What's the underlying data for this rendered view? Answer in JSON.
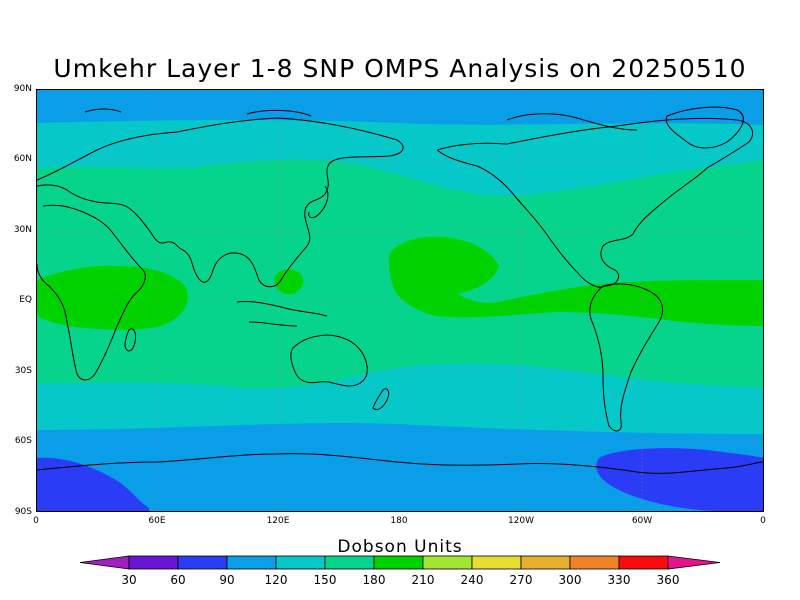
{
  "title": "Umkehr Layer 1-8 SNP OMPS Analysis on 20250510",
  "map": {
    "projection": "cylindrical-equidistant",
    "lat_range": [
      -90,
      90
    ],
    "lon_range": [
      0,
      360
    ],
    "lat_labels": [
      "90N",
      "60N",
      "30N",
      "EQ",
      "30S",
      "60S",
      "90S"
    ],
    "lon_labels": [
      "0",
      "60E",
      "120E",
      "180",
      "120W",
      "60W",
      "0"
    ],
    "gridlines": "dotted"
  },
  "colorbar": {
    "title": "Dobson Units",
    "levels": [
      "30",
      "60",
      "90",
      "120",
      "150",
      "180",
      "210",
      "240",
      "270",
      "300",
      "330",
      "360"
    ],
    "colors": [
      "#a020c0",
      "#6a14d6",
      "#2a3cf5",
      "#0a9ee8",
      "#06c8c8",
      "#06d48c",
      "#00d200",
      "#a0e632",
      "#e6dc32",
      "#e6af2d",
      "#f08228",
      "#fa0a0a",
      "#e6148c"
    ]
  }
}
